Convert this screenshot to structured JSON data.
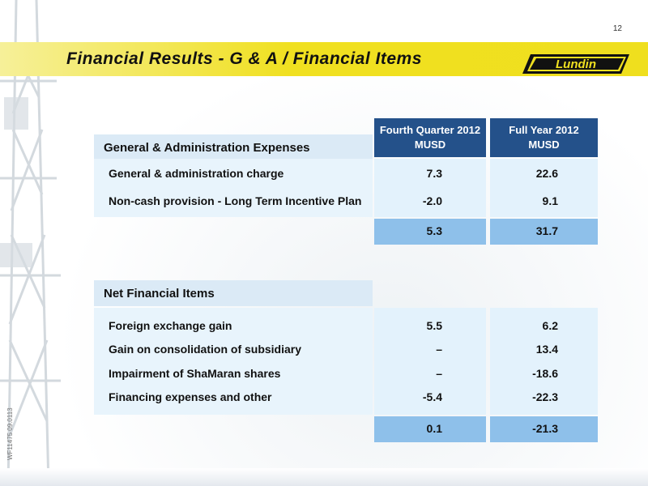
{
  "page_number": "12",
  "title": "Financial Results - G & A / Financial Items",
  "logo_text": "Lundin",
  "side_code": "WF11475 09.0113",
  "colors": {
    "title_bar": "#f0e020",
    "header": "#24518a",
    "total": "#8ec0ea",
    "light": "#e3f2fc"
  },
  "columns": {
    "q4": {
      "line1": "Fourth Quarter 2012",
      "line2": "MUSD"
    },
    "fy": {
      "line1": "Full Year 2012",
      "line2": "MUSD"
    }
  },
  "ga": {
    "heading": "General & Administration Expenses",
    "rows": [
      {
        "label": "General & administration charge",
        "q4": "7.3",
        "fy": "22.6"
      },
      {
        "label": "Non-cash provision - Long Term Incentive Plan",
        "q4": "-2.0",
        "fy": "9.1"
      }
    ],
    "total": {
      "q4": "5.3",
      "fy": "31.7"
    }
  },
  "nfi": {
    "heading": "Net Financial Items",
    "rows": [
      {
        "label": "Foreign exchange gain",
        "q4": "5.5",
        "fy": "6.2"
      },
      {
        "label": "Gain on consolidation of subsidiary",
        "q4": "–",
        "fy": "13.4"
      },
      {
        "label": "Impairment of ShaMaran shares",
        "q4": "–",
        "fy": "-18.6"
      },
      {
        "label": "Financing expenses and other",
        "q4": "-5.4",
        "fy": "-22.3"
      }
    ],
    "total": {
      "q4": "0.1",
      "fy": "-21.3"
    }
  }
}
